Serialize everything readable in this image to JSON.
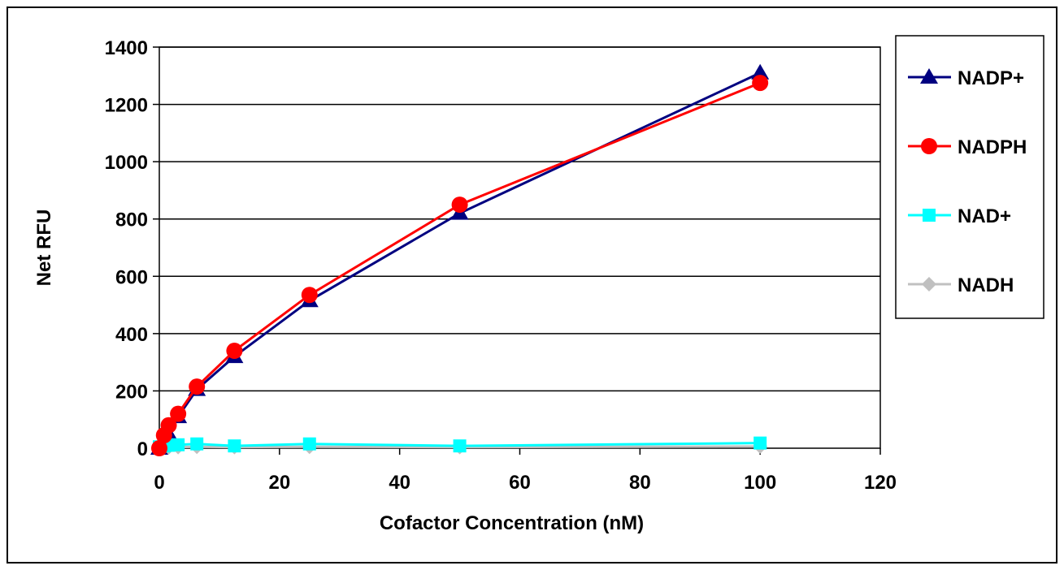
{
  "chart_data": {
    "type": "line",
    "title": "",
    "xlabel": "Cofactor Concentration (nM)",
    "ylabel": "Net RFU",
    "xlim": [
      0,
      120
    ],
    "ylim": [
      0,
      1400
    ],
    "xticks": [
      "0",
      "20",
      "40",
      "60",
      "80",
      "100",
      "120"
    ],
    "yticks": [
      "0",
      "200",
      "400",
      "600",
      "800",
      "1000",
      "1200",
      "1400"
    ],
    "grid": "horizontal",
    "legend_position": "right",
    "x": [
      0,
      0.78,
      1.56,
      3.13,
      6.25,
      12.5,
      25,
      50,
      100
    ],
    "series": [
      {
        "name": "NADP+",
        "marker": "triangle",
        "color": "#000080",
        "values": [
          0,
          25,
          50,
          110,
          205,
          320,
          515,
          820,
          1310
        ]
      },
      {
        "name": "NADPH",
        "marker": "circle",
        "color": "#ff0000",
        "values": [
          0,
          45,
          80,
          120,
          215,
          340,
          535,
          850,
          1275
        ]
      },
      {
        "name": "NAD+",
        "marker": "square",
        "color": "#00ffff",
        "values": [
          5,
          8,
          10,
          12,
          15,
          8,
          15,
          8,
          18
        ]
      },
      {
        "name": "NADH",
        "marker": "diamond",
        "color": "#c0c0c0",
        "values": [
          0,
          2,
          3,
          4,
          5,
          4,
          5,
          4,
          6
        ]
      }
    ]
  }
}
